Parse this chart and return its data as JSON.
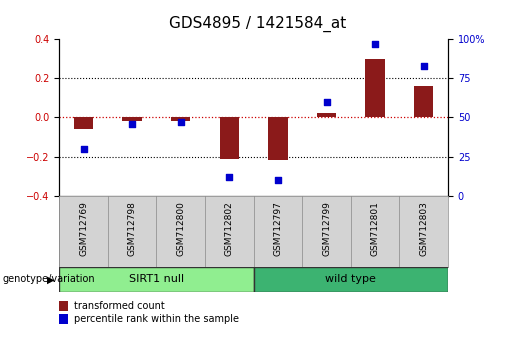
{
  "title": "GDS4895 / 1421584_at",
  "samples": [
    "GSM712769",
    "GSM712798",
    "GSM712800",
    "GSM712802",
    "GSM712797",
    "GSM712799",
    "GSM712801",
    "GSM712803"
  ],
  "transformed_counts": [
    -0.06,
    -0.02,
    -0.02,
    -0.21,
    -0.22,
    0.02,
    0.3,
    0.16
  ],
  "percentile_ranks": [
    30,
    46,
    47,
    12,
    10,
    60,
    97,
    83
  ],
  "groups": [
    {
      "label": "SIRT1 null",
      "start": 0,
      "end": 4,
      "color": "#90EE90"
    },
    {
      "label": "wild type",
      "start": 4,
      "end": 8,
      "color": "#3CB371"
    }
  ],
  "ylim_left": [
    -0.4,
    0.4
  ],
  "ylim_right": [
    0,
    100
  ],
  "yticks_left": [
    -0.4,
    -0.2,
    0.0,
    0.2,
    0.4
  ],
  "yticks_right": [
    0,
    25,
    50,
    75,
    100
  ],
  "bar_color": "#8B1A1A",
  "dot_color": "#0000CD",
  "bar_width": 0.4,
  "dot_size": 20,
  "group_label": "genotype/variation",
  "legend_items": [
    {
      "label": "transformed count",
      "color": "#8B1A1A"
    },
    {
      "label": "percentile rank within the sample",
      "color": "#0000CD"
    }
  ],
  "background_color": "#ffffff",
  "plot_bg_color": "#ffffff",
  "axis_fontsize": 7,
  "title_fontsize": 11,
  "dotted_line_color": "#000000",
  "zero_line_color": "#CC0000",
  "sample_label_bg": "#D3D3D3",
  "sample_label_fontsize": 6.5
}
